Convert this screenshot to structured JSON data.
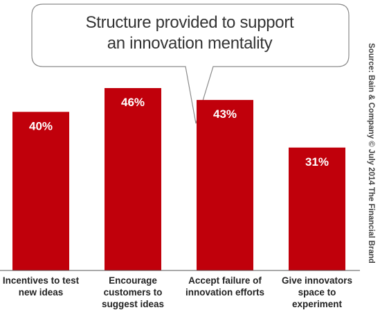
{
  "callout": {
    "line1": "Structure provided to support",
    "line2": "an innovation mentality"
  },
  "source_note": "Source: Bain & Company © July 2014 The Financial Brand",
  "colors": {
    "bar": "#c0000b",
    "bar_label_text": "#ffffff",
    "callout_border": "#8a8a8a",
    "callout_fill": "#ffffff",
    "baseline": "#555555"
  },
  "chart_data": {
    "type": "bar",
    "categories": [
      [
        "Incentives to test",
        "new ideas"
      ],
      [
        "Encourage",
        "customers to",
        "suggest ideas"
      ],
      [
        "Accept failure of",
        "innovation efforts"
      ],
      [
        "Give innovators",
        "space to experiment"
      ]
    ],
    "values": [
      40,
      46,
      43,
      31
    ],
    "data_labels": [
      "40%",
      "46%",
      "43%",
      "31%"
    ],
    "title": "Structure provided to support an innovation mentality",
    "xlabel": "",
    "ylabel": "",
    "ylim": [
      0,
      46
    ],
    "grid": false,
    "legend": "none"
  }
}
